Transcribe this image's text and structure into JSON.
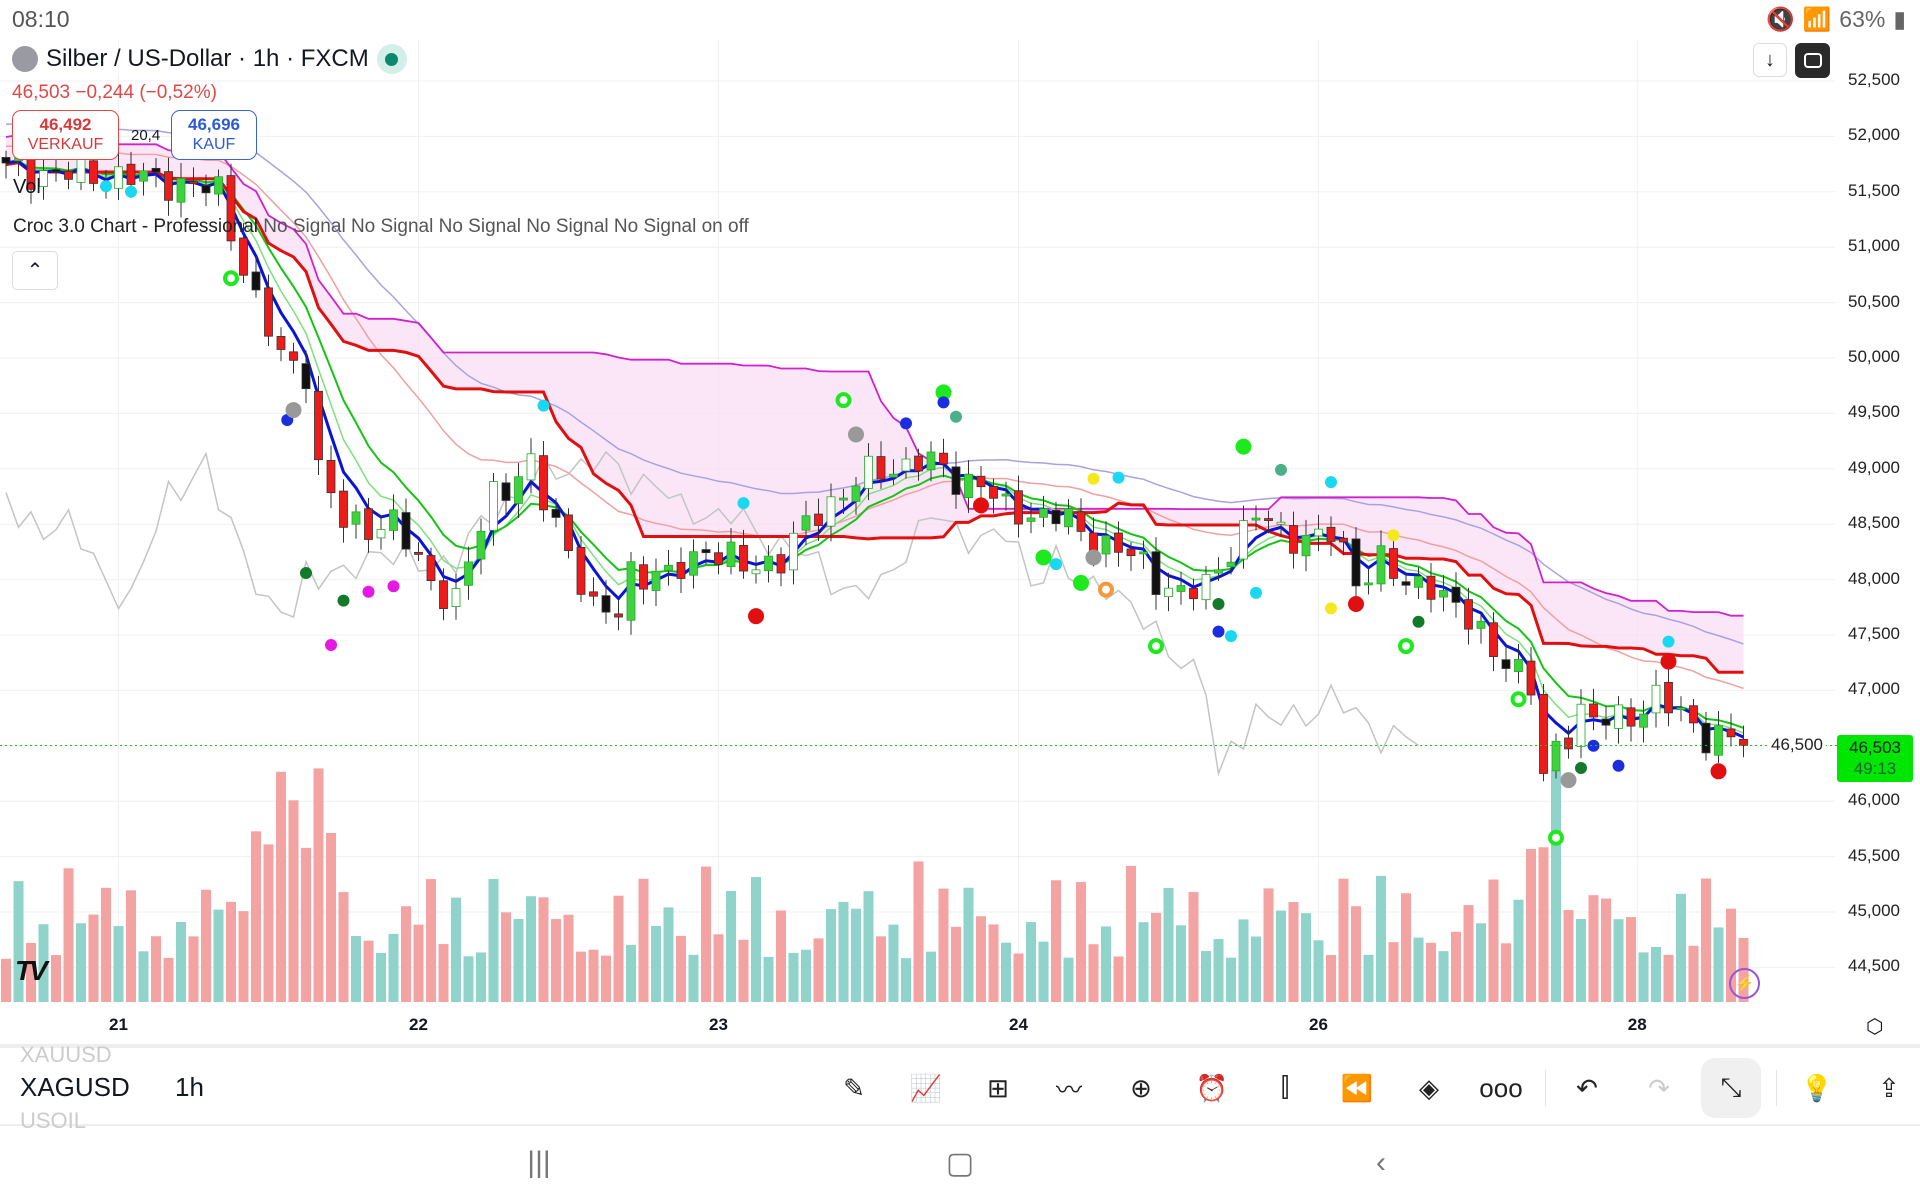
{
  "status_bar": {
    "time": "08:10",
    "battery": "63%"
  },
  "header": {
    "title": "Silber / US-Dollar · 1h · FXCM",
    "price_change": "46,503  −0,244 (−0,52%)"
  },
  "trade": {
    "sell_price": "46,492",
    "sell_label": "VERKAUF",
    "buy_price": "46,696",
    "buy_label": "KAUF",
    "spread": "20,4"
  },
  "indicators": {
    "vol_label": "Vol",
    "legend_name": "Croc 3.0 Chart - Professional",
    "legend_signals": "No Signal No Signal No Signal No Signal No Signal on off"
  },
  "price_axis": {
    "ticks": [
      "52,500",
      "52,000",
      "51,500",
      "51,000",
      "50,500",
      "50,000",
      "49,500",
      "49,000",
      "48,500",
      "48,000",
      "47,500",
      "47,000",
      "46,500",
      "46,000",
      "45,500",
      "45,000",
      "44,500"
    ],
    "tick_values": [
      52.5,
      52,
      51.5,
      51,
      50.5,
      50,
      49.5,
      49,
      48.5,
      48,
      47.5,
      47,
      46.5,
      46,
      45.5,
      45,
      44.5
    ],
    "current_price": "46,503",
    "countdown": "49:13",
    "current_value": 46.503
  },
  "date_axis": [
    {
      "label": "21",
      "hour": 9
    },
    {
      "label": "22",
      "hour": 33
    },
    {
      "label": "23",
      "hour": 57
    },
    {
      "label": "24",
      "hour": 81
    },
    {
      "label": "26",
      "hour": 105
    },
    {
      "label": "28",
      "hour": 130.5
    }
  ],
  "toolbar": {
    "symbol": "XAGUSD",
    "symbol_prev": "XAUUSD",
    "symbol_next": "USOIL",
    "timeframe": "1h"
  },
  "colors": {
    "up": "#3fd13f",
    "down": "#ee1b1b",
    "vol_up": "#8fd3cb",
    "vol_down": "#f4a3a3",
    "tenkan": "#0a14d8",
    "kijun": "#e01010",
    "cloud": "#f9dcf3",
    "senkou": "#d020d0",
    "price_tag": "#00e600"
  },
  "chart_data": {
    "type": "candlestick",
    "symbol": "XAGUSD",
    "interval": "1h",
    "ylim": [
      44.3,
      52.7
    ],
    "price_path": [
      [
        0,
        51.7
      ],
      [
        13,
        51.6
      ],
      [
        17,
        51.5
      ],
      [
        20,
        50.5
      ],
      [
        22,
        50.0
      ],
      [
        24,
        49.9
      ],
      [
        25,
        49.0
      ],
      [
        27,
        48.5
      ],
      [
        29,
        48.5
      ],
      [
        31,
        48.5
      ],
      [
        34,
        48.0
      ],
      [
        36,
        47.8
      ],
      [
        39,
        48.8
      ],
      [
        42,
        49.0
      ],
      [
        43,
        48.7
      ],
      [
        45,
        48.3
      ],
      [
        47,
        47.7
      ],
      [
        49,
        47.7
      ],
      [
        50,
        48.1
      ],
      [
        53,
        48.0
      ],
      [
        56,
        48.3
      ],
      [
        59,
        48.1
      ],
      [
        62,
        48.2
      ],
      [
        65,
        48.6
      ],
      [
        68,
        48.9
      ],
      [
        71,
        49.0
      ],
      [
        73,
        49.1
      ],
      [
        76,
        48.9
      ],
      [
        78,
        48.9
      ],
      [
        80,
        48.6
      ],
      [
        84,
        48.6
      ],
      [
        86,
        48.4
      ],
      [
        89,
        48.3
      ],
      [
        92,
        48.0
      ],
      [
        94,
        47.9
      ],
      [
        96,
        47.9
      ],
      [
        98,
        48.3
      ],
      [
        100,
        48.6
      ],
      [
        102,
        48.4
      ],
      [
        106,
        48.4
      ],
      [
        108,
        48.0
      ],
      [
        110,
        48.2
      ],
      [
        112,
        47.9
      ],
      [
        114,
        48.0
      ],
      [
        117,
        47.6
      ],
      [
        120,
        47.3
      ],
      [
        122,
        47.0
      ],
      [
        123,
        46.2
      ],
      [
        124,
        46.5
      ],
      [
        126,
        46.8
      ],
      [
        127,
        46.7
      ],
      [
        130,
        46.8
      ],
      [
        132,
        46.9
      ],
      [
        134,
        46.8
      ],
      [
        136,
        46.6
      ],
      [
        139,
        46.5
      ]
    ],
    "markers": [
      [
        8,
        51.55,
        "#19d8ef",
        "dot"
      ],
      [
        10,
        51.5,
        "#19d8ef",
        "dot"
      ],
      [
        18,
        50.72,
        "#1ee81e",
        "ring"
      ],
      [
        22.5,
        49.44,
        "#1c2de0",
        "dot"
      ],
      [
        23,
        49.53,
        "#999",
        "big"
      ],
      [
        24,
        48.06,
        "#137a2a",
        "dot"
      ],
      [
        27,
        47.81,
        "#137a2a",
        "dot"
      ],
      [
        29,
        47.89,
        "#e419e4",
        "dot"
      ],
      [
        31,
        47.94,
        "#e419e4",
        "dot"
      ],
      [
        26,
        47.41,
        "#e419e4",
        "dot"
      ],
      [
        43,
        49.57,
        "#19d8ef",
        "dot"
      ],
      [
        59,
        48.69,
        "#19d8ef",
        "dot"
      ],
      [
        60,
        47.67,
        "#e01010",
        "big"
      ],
      [
        67,
        49.62,
        "#1ee81e",
        "ring"
      ],
      [
        68,
        49.31,
        "#999",
        "big"
      ],
      [
        72,
        49.41,
        "#1c2de0",
        "dot"
      ],
      [
        75,
        49.69,
        "#1ee81e",
        "big"
      ],
      [
        75,
        49.6,
        "#1c2de0",
        "dot"
      ],
      [
        76,
        49.47,
        "#4bb08a",
        "dot"
      ],
      [
        78,
        48.67,
        "#e01010",
        "big"
      ],
      [
        83,
        48.2,
        "#1ee81e",
        "big"
      ],
      [
        84,
        48.14,
        "#19d8ef",
        "dot"
      ],
      [
        86,
        47.97,
        "#1ee81e",
        "big"
      ],
      [
        87,
        48.2,
        "#999",
        "big"
      ],
      [
        88,
        47.91,
        "#f59a3a",
        "ring"
      ],
      [
        87,
        48.91,
        "#f5e81e",
        "dot"
      ],
      [
        89,
        48.92,
        "#19d8ef",
        "dot"
      ],
      [
        92,
        47.4,
        "#1ee81e",
        "ring"
      ],
      [
        97,
        47.53,
        "#1c2de0",
        "dot"
      ],
      [
        98,
        47.49,
        "#19d8ef",
        "dot"
      ],
      [
        97,
        47.78,
        "#137a2a",
        "dot"
      ],
      [
        99,
        49.2,
        "#1ee81e",
        "big"
      ],
      [
        100,
        47.88,
        "#19d8ef",
        "dot"
      ],
      [
        102,
        48.99,
        "#4bb08a",
        "dot"
      ],
      [
        106,
        48.88,
        "#19d8ef",
        "dot"
      ],
      [
        106,
        47.74,
        "#f5e81e",
        "dot"
      ],
      [
        108,
        47.78,
        "#e01010",
        "big"
      ],
      [
        111,
        48.4,
        "#f5e81e",
        "dot"
      ],
      [
        112,
        47.4,
        "#1ee81e",
        "ring"
      ],
      [
        113,
        47.62,
        "#137a2a",
        "dot"
      ],
      [
        121,
        46.92,
        "#1ee81e",
        "ring"
      ],
      [
        124,
        45.67,
        "#1ee81e",
        "ring"
      ],
      [
        125,
        46.19,
        "#999",
        "big"
      ],
      [
        126,
        46.3,
        "#137a2a",
        "dot"
      ],
      [
        127,
        46.5,
        "#1c2de0",
        "dot"
      ],
      [
        129,
        46.32,
        "#1c2de0",
        "dot"
      ],
      [
        133,
        47.26,
        "#e01010",
        "big"
      ],
      [
        133,
        47.44,
        "#19d8ef",
        "dot"
      ],
      [
        137,
        46.27,
        "#e01010",
        "big"
      ]
    ]
  }
}
